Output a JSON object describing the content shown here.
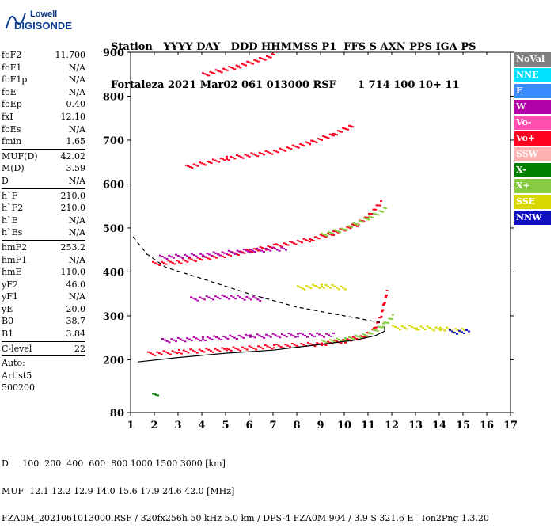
{
  "logo": {
    "line1": "Lowell",
    "line2": "DIGISONDE"
  },
  "header": {
    "line1": "Station   YYYY DAY   DDD HHMMSS P1  FFS S AXN PPS IGA PS",
    "line2": "Fortaleza 2021 Mar02 061 013000 RSF      1 714 100 10+ 11"
  },
  "params": [
    [
      {
        "label": "foF2",
        "value": "11.700"
      },
      {
        "label": "foF1",
        "value": "N/A"
      },
      {
        "label": "foF1p",
        "value": "N/A"
      },
      {
        "label": "foE",
        "value": "N/A"
      },
      {
        "label": "foEp",
        "value": "0.40"
      },
      {
        "label": "fxI",
        "value": "12.10"
      },
      {
        "label": "foEs",
        "value": "N/A"
      },
      {
        "label": "fmin",
        "value": "1.65"
      }
    ],
    [
      {
        "label": "MUF(D)",
        "value": "42.02"
      },
      {
        "label": "M(D)",
        "value": "3.59"
      },
      {
        "label": "D",
        "value": "N/A"
      }
    ],
    [
      {
        "label": "h`F",
        "value": "210.0"
      },
      {
        "label": "h`F2",
        "value": "210.0"
      },
      {
        "label": "h`E",
        "value": "N/A"
      },
      {
        "label": "h`Es",
        "value": "N/A"
      }
    ],
    [
      {
        "label": "hmF2",
        "value": "253.2"
      },
      {
        "label": "hmF1",
        "value": "N/A"
      },
      {
        "label": "hmE",
        "value": "110.0"
      },
      {
        "label": "yF2",
        "value": "46.0"
      },
      {
        "label": "yF1",
        "value": "N/A"
      },
      {
        "label": "yE",
        "value": "20.0"
      },
      {
        "label": "B0",
        "value": "38.7"
      },
      {
        "label": "B1",
        "value": "3.84"
      }
    ],
    [
      {
        "label": "C-level",
        "value": "22"
      }
    ]
  ],
  "extra": {
    "auto_label": "Auto:",
    "artist": "Artist5",
    "code": "500200"
  },
  "legend": [
    {
      "label": "NoVal",
      "bg": "#808080",
      "fg": "#ffffff"
    },
    {
      "label": "NNE",
      "bg": "#00e0ff",
      "fg": "#ffffff"
    },
    {
      "label": "E",
      "bg": "#3a8cff",
      "fg": "#ffffff"
    },
    {
      "label": "W",
      "bg": "#b000a8",
      "fg": "#ffffff"
    },
    {
      "label": "Vo-",
      "bg": "#ff50b0",
      "fg": "#ffffff"
    },
    {
      "label": "Vo+",
      "bg": "#ff0020",
      "fg": "#ffffff"
    },
    {
      "label": "SSW",
      "bg": "#ffb0b0",
      "fg": "#ffffff"
    },
    {
      "label": "X-",
      "bg": "#008000",
      "fg": "#ffffff"
    },
    {
      "label": "X+",
      "bg": "#88cc44",
      "fg": "#ffffff"
    },
    {
      "label": "SSE",
      "bg": "#d8d800",
      "fg": "#ffffff"
    },
    {
      "label": "NNW",
      "bg": "#1010c0",
      "fg": "#ffffff"
    }
  ],
  "footer": {
    "line1": "D     100  200  400  600  800 1000 1500 3000 [km]",
    "line2": "MUF  12.1 12.2 12.9 14.0 15.6 17.9 24.6 42.0 [MHz]",
    "line3": "FZA0M_2021061013000.RSF / 320fx256h 50 kHz 5.0 km / DPS-4 FZA0M 904 / 3.9 S 321.6 E   Ion2Png 1.3.20"
  },
  "chart_data": {
    "type": "scatter",
    "xlim": [
      1,
      17
    ],
    "ylim": [
      80,
      900
    ],
    "x_ticks": [
      1,
      2,
      3,
      4,
      5,
      6,
      7,
      8,
      9,
      10,
      11,
      12,
      13,
      14,
      15,
      16,
      17
    ],
    "y_ticks": [
      80,
      200,
      300,
      400,
      500,
      600,
      700,
      800,
      900
    ],
    "xlabel": "",
    "ylabel": "",
    "series": [
      {
        "color": "#ff0020",
        "kind": "trace",
        "points": [
          [
            1.7,
            215
          ],
          [
            3,
            220
          ],
          [
            5,
            225
          ],
          [
            7,
            232
          ],
          [
            9,
            238
          ],
          [
            10,
            245
          ],
          [
            10.8,
            255
          ],
          [
            11.2,
            270
          ],
          [
            11.5,
            300
          ],
          [
            11.7,
            345
          ],
          [
            11.75,
            355
          ]
        ]
      },
      {
        "color": "#ff0020",
        "kind": "trace",
        "points": [
          [
            1.9,
            420
          ],
          [
            3,
            425
          ],
          [
            5,
            440
          ],
          [
            7,
            460
          ],
          [
            8.5,
            475
          ],
          [
            9.5,
            490
          ],
          [
            10.5,
            510
          ],
          [
            11,
            530
          ],
          [
            11.5,
            560
          ]
        ]
      },
      {
        "color": "#ff0020",
        "kind": "trace",
        "points": [
          [
            3.3,
            640
          ],
          [
            5,
            660
          ],
          [
            7,
            675
          ],
          [
            8.5,
            695
          ],
          [
            9.5,
            715
          ],
          [
            10.3,
            735
          ]
        ]
      },
      {
        "color": "#ff0020",
        "kind": "trace",
        "points": [
          [
            4,
            850
          ],
          [
            5.5,
            870
          ],
          [
            7,
            895
          ]
        ]
      },
      {
        "color": "#b000a8",
        "kind": "trace",
        "points": [
          [
            2.3,
            245
          ],
          [
            4,
            250
          ],
          [
            6,
            255
          ],
          [
            8,
            258
          ],
          [
            9.5,
            258
          ]
        ]
      },
      {
        "color": "#b000a8",
        "kind": "trace",
        "points": [
          [
            2.2,
            435
          ],
          [
            4,
            440
          ],
          [
            6,
            450
          ],
          [
            7.5,
            455
          ]
        ]
      },
      {
        "color": "#b000a8",
        "kind": "trace",
        "points": [
          [
            3.5,
            340
          ],
          [
            5,
            345
          ],
          [
            6.5,
            340
          ]
        ]
      },
      {
        "color": "#88cc44",
        "kind": "trace",
        "points": [
          [
            9,
            242
          ],
          [
            10,
            248
          ],
          [
            11,
            260
          ],
          [
            11.6,
            280
          ],
          [
            12,
            300
          ]
        ]
      },
      {
        "color": "#88cc44",
        "kind": "trace",
        "points": [
          [
            9,
            485
          ],
          [
            10,
            500
          ],
          [
            11,
            525
          ],
          [
            11.7,
            545
          ]
        ]
      },
      {
        "color": "#d8d800",
        "kind": "trace",
        "points": [
          [
            12,
            275
          ],
          [
            13,
            275
          ],
          [
            14,
            272
          ],
          [
            15,
            268
          ]
        ]
      },
      {
        "color": "#d8d800",
        "kind": "trace",
        "points": [
          [
            8,
            365
          ],
          [
            9,
            370
          ],
          [
            10,
            365
          ]
        ]
      },
      {
        "color": "#1010c0",
        "kind": "trace",
        "points": [
          [
            14.4,
            265
          ],
          [
            15.2,
            265
          ]
        ]
      },
      {
        "color": "#008000",
        "kind": "trace",
        "points": [
          [
            1.9,
            120
          ],
          [
            2.1,
            125
          ]
        ]
      }
    ],
    "profile_solid": [
      [
        1.3,
        195
      ],
      [
        3,
        205
      ],
      [
        5,
        215
      ],
      [
        7,
        222
      ],
      [
        9,
        235
      ],
      [
        10.5,
        245
      ],
      [
        11.3,
        255
      ],
      [
        11.7,
        265
      ],
      [
        11.7,
        275
      ]
    ],
    "profile_dashed": [
      [
        1.1,
        480
      ],
      [
        1.7,
        440
      ],
      [
        2.5,
        410
      ],
      [
        4,
        385
      ],
      [
        6,
        350
      ],
      [
        8,
        320
      ],
      [
        10,
        300
      ],
      [
        11.5,
        285
      ]
    ]
  }
}
